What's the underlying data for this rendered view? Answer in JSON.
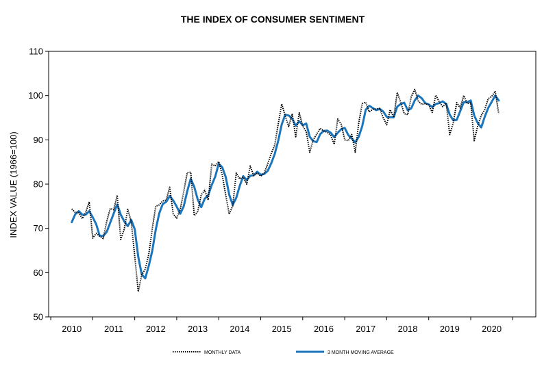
{
  "chart_data": {
    "type": "line",
    "title": "THE INDEX OF CONSUMER SENTIMENT",
    "xlabel": "",
    "ylabel": "INDEX VALUE (1966=100)",
    "xlim": [
      2009.45,
      2021.05
    ],
    "ylim": [
      50,
      110
    ],
    "yticks": [
      50,
      60,
      70,
      80,
      90,
      100,
      110
    ],
    "xticks": [
      "2010",
      "2011",
      "2012",
      "2013",
      "2014",
      "2015",
      "2016",
      "2017",
      "2018",
      "2019",
      "2020"
    ],
    "xtick_values": [
      2010,
      2011,
      2012,
      2013,
      2014,
      2015,
      2016,
      2017,
      2018,
      2019,
      2020
    ],
    "grid": false,
    "legend_position": "bottom",
    "colors": {
      "monthly": "#000000",
      "moving_average": "#1a75bc"
    },
    "series": [
      {
        "name": "MONTHLY DATA",
        "style": "dotted",
        "x_start": 2010.0,
        "x_step_months": 1,
        "values": [
          74.4,
          73.6,
          73.6,
          72.2,
          73.6,
          76.0,
          67.8,
          68.9,
          68.2,
          67.7,
          71.6,
          74.5,
          74.2,
          77.5,
          67.5,
          69.8,
          74.3,
          71.5,
          63.7,
          55.7,
          59.5,
          60.8,
          64.1,
          69.9,
          75.0,
          75.3,
          76.2,
          76.4,
          79.3,
          73.2,
          72.3,
          74.3,
          78.3,
          82.6,
          82.7,
          72.9,
          73.8,
          77.6,
          78.6,
          76.4,
          84.5,
          84.1,
          85.1,
          82.1,
          77.5,
          73.2,
          75.1,
          82.5,
          81.2,
          81.6,
          80.0,
          84.1,
          81.9,
          82.5,
          81.8,
          82.5,
          84.6,
          86.9,
          88.8,
          93.6,
          98.1,
          95.4,
          93.0,
          95.9,
          90.7,
          96.1,
          93.1,
          91.9,
          87.2,
          90.0,
          91.3,
          92.6,
          92.0,
          91.7,
          91.0,
          89.0,
          94.7,
          93.5,
          90.0,
          89.8,
          91.2,
          87.2,
          93.8,
          98.2,
          98.5,
          96.3,
          96.9,
          97.0,
          97.1,
          95.0,
          93.4,
          96.8,
          95.1,
          100.7,
          98.5,
          95.9,
          95.7,
          99.7,
          101.4,
          98.8,
          98.0,
          98.2,
          97.9,
          96.2,
          100.1,
          98.6,
          97.5,
          98.3,
          91.2,
          93.8,
          98.4,
          97.2,
          100.0,
          98.2,
          98.4,
          89.8,
          93.2,
          95.5,
          96.8,
          99.3,
          99.8,
          101.0,
          95.9
        ]
      },
      {
        "name": "3 MONTH MOVING AVERAGE",
        "style": "solid",
        "x_start": 2010.0,
        "x_step_months": 1,
        "values": [
          71.4,
          73.2,
          73.9,
          73.1,
          73.1,
          73.9,
          72.5,
          70.9,
          68.3,
          68.3,
          69.2,
          71.3,
          73.4,
          75.4,
          73.1,
          71.6,
          70.5,
          71.9,
          69.8,
          63.6,
          59.6,
          58.7,
          61.5,
          64.9,
          69.7,
          73.4,
          75.5,
          76.0,
          77.3,
          76.3,
          74.9,
          73.3,
          75.0,
          78.4,
          81.2,
          79.4,
          76.5,
          74.8,
          76.7,
          77.5,
          79.8,
          81.7,
          84.6,
          83.8,
          81.6,
          77.6,
          75.3,
          76.9,
          79.6,
          81.8,
          80.9,
          81.9,
          82.0,
          82.8,
          82.1,
          82.3,
          83.0,
          84.7,
          86.8,
          89.8,
          93.5,
          95.7,
          95.5,
          94.8,
          93.2,
          94.2,
          93.3,
          93.7,
          90.7,
          89.7,
          89.5,
          91.3,
          92.0,
          92.1,
          91.6,
          90.6,
          91.6,
          92.4,
          92.7,
          91.1,
          90.3,
          89.4,
          90.7,
          93.1,
          96.8,
          97.7,
          97.2,
          96.7,
          97.0,
          96.4,
          95.2,
          95.1,
          95.1,
          97.5,
          98.1,
          98.4,
          96.7,
          97.1,
          98.9,
          100.0,
          99.4,
          98.3,
          98.0,
          97.4,
          98.1,
          98.3,
          98.7,
          98.1,
          95.7,
          94.4,
          94.5,
          96.5,
          98.5,
          98.5,
          98.9,
          95.5,
          93.8,
          92.8,
          95.2,
          97.2,
          98.6,
          100.0,
          98.9
        ]
      }
    ]
  }
}
